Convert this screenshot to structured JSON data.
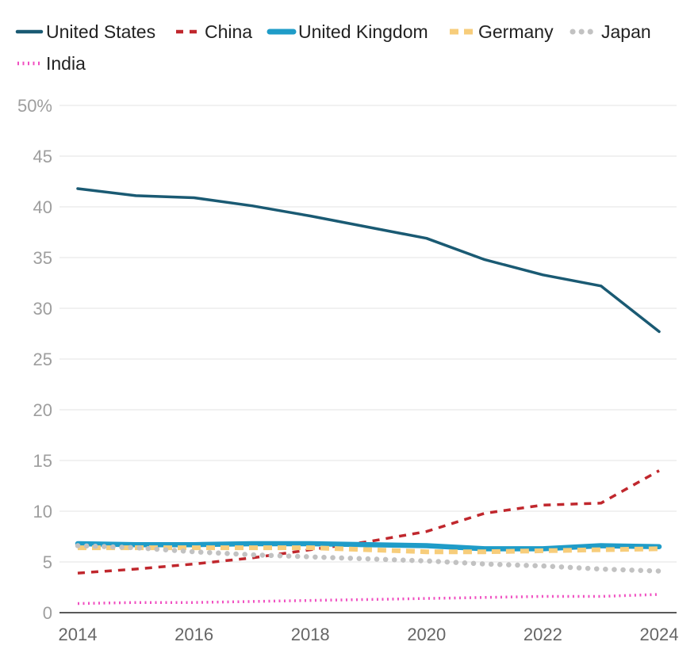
{
  "chart_data": {
    "type": "line",
    "title": "",
    "xlabel": "",
    "ylabel": "",
    "x": [
      2014,
      2015,
      2016,
      2017,
      2018,
      2019,
      2020,
      2021,
      2022,
      2023,
      2024
    ],
    "ylim": [
      0,
      50
    ],
    "y_ticks": [
      0,
      5,
      10,
      15,
      20,
      25,
      30,
      35,
      40,
      45,
      50
    ],
    "y_tick_labels": [
      "0",
      "5",
      "10",
      "15",
      "20",
      "25",
      "30",
      "35",
      "40",
      "45",
      "50%"
    ],
    "x_ticks": [
      2014,
      2016,
      2018,
      2020,
      2022,
      2024
    ],
    "x_tick_labels": [
      "2014",
      "2016",
      "2018",
      "2020",
      "2022",
      "2024"
    ],
    "grid": true,
    "legend_position": "top-left",
    "series": [
      {
        "name": "United States",
        "color": "#1a5a73",
        "style": "solid",
        "values": [
          41.8,
          41.1,
          40.9,
          40.1,
          39.1,
          38.0,
          36.9,
          34.8,
          33.3,
          32.2,
          27.7
        ]
      },
      {
        "name": "China",
        "color": "#c0272d",
        "style": "dashed",
        "values": [
          3.9,
          4.3,
          4.8,
          5.4,
          6.2,
          7.0,
          8.0,
          9.8,
          10.6,
          10.8,
          14.0
        ]
      },
      {
        "name": "United Kingdom",
        "color": "#1f9cc8",
        "style": "solid-thick",
        "values": [
          6.8,
          6.7,
          6.7,
          6.8,
          6.8,
          6.7,
          6.6,
          6.3,
          6.3,
          6.6,
          6.5
        ]
      },
      {
        "name": "Germany",
        "color": "#f7cd7b",
        "style": "dashed-thick",
        "values": [
          6.4,
          6.4,
          6.4,
          6.4,
          6.4,
          6.2,
          6.0,
          6.0,
          6.1,
          6.2,
          6.3
        ]
      },
      {
        "name": "Japan",
        "color": "#c2c2c2",
        "style": "dotted-thick",
        "values": [
          6.6,
          6.4,
          6.0,
          5.7,
          5.5,
          5.3,
          5.1,
          4.8,
          4.6,
          4.3,
          4.1
        ]
      },
      {
        "name": "India",
        "color": "#f04fc1",
        "style": "dotted",
        "values": [
          0.9,
          1.0,
          1.0,
          1.1,
          1.2,
          1.3,
          1.4,
          1.5,
          1.6,
          1.6,
          1.8
        ]
      }
    ]
  }
}
